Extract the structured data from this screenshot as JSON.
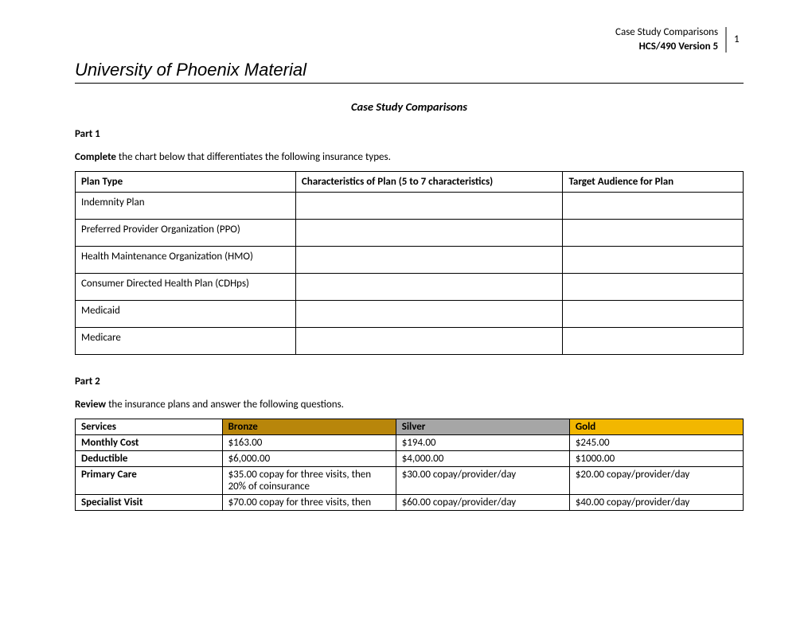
{
  "header": {
    "doc_title": "Case Study Comparisons",
    "course": "HCS/490 Version 5",
    "page_no": "1"
  },
  "title": "University of Phoenix Material",
  "subtitle": "Case Study Comparisons",
  "part1": {
    "label": "Part 1",
    "instr_bold": "Complete",
    "instr_rest": " the chart below that differentiates the following insurance types.",
    "columns": {
      "c1": "Plan Type",
      "c2": "Characteristics of Plan (5 to 7 characteristics)",
      "c3": "Target Audience for Plan"
    },
    "rows": [
      "Indemnity Plan",
      "Preferred Provider Organization (PPO)",
      "Health Maintenance Organization (HMO)",
      "Consumer Directed Health Plan (CDHps)",
      "Medicaid",
      "Medicare"
    ]
  },
  "part2": {
    "label": "Part 2",
    "instr_bold": "Review",
    "instr_rest": " the insurance plans and answer the following questions.",
    "columns": {
      "svc": "Services",
      "bronze": "Bronze",
      "silver": "Silver",
      "gold": "Gold"
    },
    "colors": {
      "bronze": "#b8860b",
      "silver": "#a6a6a6",
      "gold": "#f2b700"
    },
    "rows": [
      {
        "svc": "Monthly Cost",
        "b": "$163.00",
        "s": "$194.00",
        "g": "$245.00"
      },
      {
        "svc": "Deductible",
        "b": "$6,000.00",
        "s": "$4,000.00",
        "g": "$1000.00"
      },
      {
        "svc": "Primary Care",
        "b": "$35.00 copay for three visits, then 20% of coinsurance",
        "s": "$30.00 copay/provider/day",
        "g": "$20.00 copay/provider/day"
      },
      {
        "svc": "Specialist Visit",
        "b": "$70.00 copay for three visits, then",
        "s": "$60.00 copay/provider/day",
        "g": "$40.00 copay/provider/day"
      }
    ]
  }
}
